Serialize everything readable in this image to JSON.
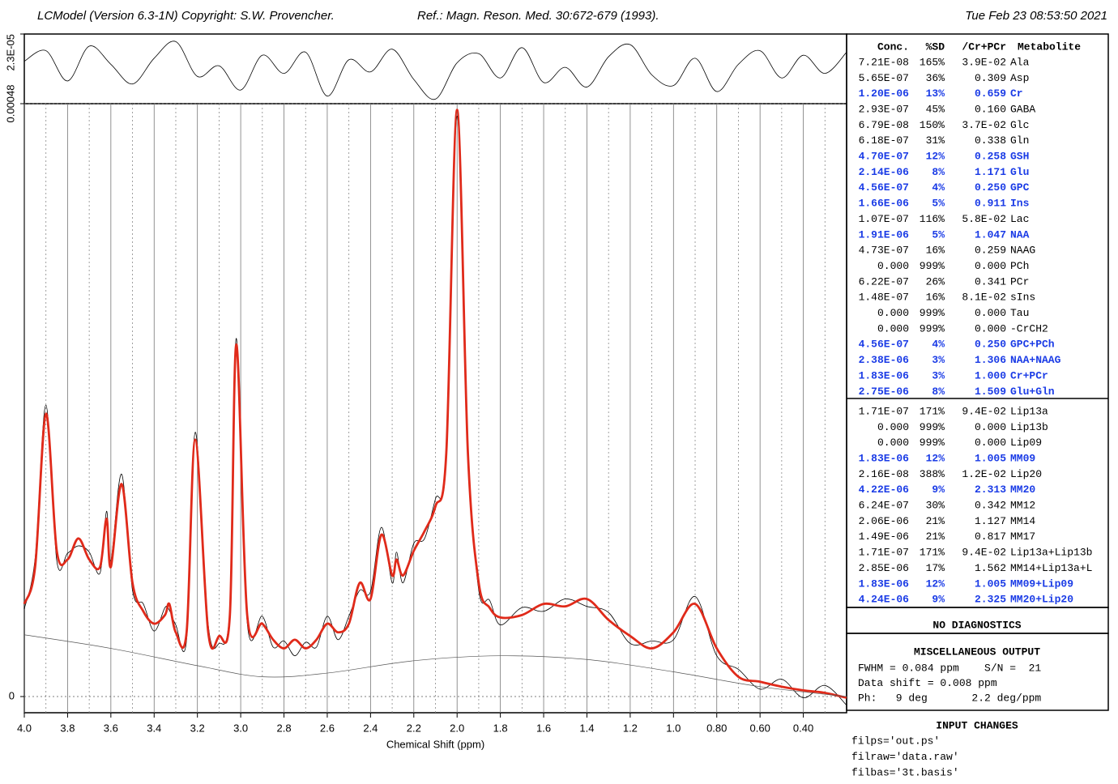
{
  "header": {
    "program": "LCModel (Version 6.3-1N) Copyright: S.W. Provencher.",
    "reference": "Ref.: Magn. Reson. Med. 30:672-679 (1993).",
    "date": "Tue Feb 23 08:53:50 2021"
  },
  "chart_data": [
    {
      "type": "line",
      "xlim": [
        4.0,
        0.2
      ],
      "ylim": [
        -2.3e-05,
        2.3e-05
      ],
      "yticks": [
        {
          "value": 2.3e-05,
          "label": "2.3E-05"
        }
      ],
      "series": [
        {
          "color": "#000000",
          "x": [
            4.0,
            3.9,
            3.8,
            3.7,
            3.6,
            3.5,
            3.4,
            3.3,
            3.2,
            3.1,
            3.0,
            2.9,
            2.8,
            2.7,
            2.6,
            2.5,
            2.4,
            2.3,
            2.2,
            2.1,
            2.0,
            1.9,
            1.8,
            1.7,
            1.6,
            1.5,
            1.4,
            1.3,
            1.2,
            1.1,
            1.0,
            0.9,
            0.8,
            0.7,
            0.6,
            0.5,
            0.4,
            0.3,
            0.2
          ],
          "values": [
            5e-06,
            1.2e-05,
            -8e-06,
            1.5e-05,
            3e-06,
            -1e-05,
            7e-06,
            1.8e-05,
            -5e-06,
            2e-06,
            -1.4e-05,
            9e-06,
            -3e-06,
            1.1e-05,
            -1.8e-05,
            6e-06,
            -2e-06,
            1.3e-05,
            -7e-06,
            -2e-05,
            4e-06,
            1e-05,
            -6e-06,
            1.4e-05,
            -9e-06,
            1e-06,
            -1.2e-05,
            8e-06,
            1.6e-05,
            -4e-06,
            -1.1e-05,
            7e-06,
            -1.5e-05,
            3e-06,
            1.2e-05,
            -6e-06,
            9e-06,
            -3e-06,
            1.1e-05
          ]
        }
      ]
    },
    {
      "type": "line",
      "x_label": "Chemical Shift (ppm)",
      "xlim": [
        4.0,
        0.2
      ],
      "xticks": [
        {
          "value": 4,
          "label": "4.0"
        },
        3.8,
        3.6,
        3.4,
        3.2,
        {
          "value": 3,
          "label": "3.0"
        },
        2.8,
        2.6,
        2.4,
        2.2,
        {
          "value": 2,
          "label": "2.0"
        },
        1.8,
        1.6,
        1.4,
        1.2,
        {
          "value": 1,
          "label": "1.0"
        },
        {
          "value": 0.8,
          "label": "0.80"
        },
        {
          "value": 0.6,
          "label": "0.60"
        },
        {
          "value": 0.4,
          "label": "0.40"
        }
      ],
      "xminor": [
        3.9,
        3.7,
        3.5,
        3.3,
        3.1,
        2.9,
        2.7,
        2.5,
        2.3,
        2.1,
        1.9,
        1.7,
        1.5,
        1.3,
        1.1,
        0.9,
        0.7,
        0.5,
        0.3
      ],
      "ylim": [
        -1.31e-05,
        0.00048
      ],
      "yticks": [
        0,
        0.00048
      ],
      "grid": true,
      "series": [
        {
          "color": "#000000",
          "x": [
            4.0,
            3.95,
            3.9,
            3.85,
            3.8,
            3.75,
            3.7,
            3.65,
            3.62,
            3.6,
            3.55,
            3.5,
            3.45,
            3.4,
            3.35,
            3.33,
            3.3,
            3.25,
            3.21,
            3.15,
            3.1,
            3.05,
            3.02,
            2.97,
            2.9,
            2.85,
            2.8,
            2.75,
            2.7,
            2.65,
            2.6,
            2.55,
            2.5,
            2.45,
            2.4,
            2.35,
            2.3,
            2.28,
            2.25,
            2.2,
            2.15,
            2.1,
            2.05,
            2.0,
            1.95,
            1.9,
            1.85,
            1.8,
            1.7,
            1.6,
            1.5,
            1.4,
            1.3,
            1.2,
            1.1,
            1.0,
            0.9,
            0.8,
            0.7,
            0.6,
            0.5,
            0.4,
            0.3,
            0.2
          ],
          "values": [
            7.1e-05,
            0.000112,
            0.000236,
            0.00011,
            0.000116,
            0.000122,
            0.000117,
            0.0001,
            0.00015,
            0.00011,
            0.00018,
            8.6e-05,
            7.5e-05,
            5.3e-05,
            7.2e-05,
            7e-05,
            5.8e-05,
            4.6e-05,
            0.000214,
            5.8e-05,
            4.3e-05,
            7.2e-05,
            0.00029,
            6e-05,
            6.5e-05,
            4e-05,
            4.5e-05,
            3.3e-05,
            4.4e-05,
            4e-05,
            6.5e-05,
            4.6e-05,
            6.5e-05,
            8.6e-05,
            8.5e-05,
            0.000137,
            9.2e-05,
            0.000117,
            9.2e-05,
            0.000124,
            0.000128,
            0.00016,
            0.000191,
            0.00047,
            0.000203,
            8.6e-05,
            7.8e-05,
            5.8e-05,
            7.2e-05,
            6.9e-05,
            7.9e-05,
            7.3e-05,
            6.8e-05,
            4.3e-05,
            4.5e-05,
            4.6e-05,
            8.1e-05,
            3.3e-05,
            2.2e-05,
            6e-06,
            1.4e-05,
            -1e-06,
            9e-06,
            -7e-06
          ]
        },
        {
          "color": "#e02a1a",
          "x": [
            4.0,
            3.95,
            3.9,
            3.85,
            3.8,
            3.75,
            3.7,
            3.65,
            3.62,
            3.6,
            3.55,
            3.5,
            3.45,
            3.4,
            3.35,
            3.33,
            3.3,
            3.25,
            3.21,
            3.15,
            3.1,
            3.05,
            3.02,
            2.97,
            2.9,
            2.85,
            2.8,
            2.75,
            2.7,
            2.65,
            2.6,
            2.55,
            2.5,
            2.45,
            2.4,
            2.35,
            2.3,
            2.28,
            2.25,
            2.2,
            2.15,
            2.1,
            2.05,
            2.0,
            1.95,
            1.9,
            1.85,
            1.8,
            1.7,
            1.6,
            1.5,
            1.4,
            1.3,
            1.2,
            1.1,
            1.0,
            0.9,
            0.8,
            0.7,
            0.6,
            0.5,
            0.4,
            0.3,
            0.2
          ],
          "values": [
            7.5e-05,
            0.000105,
            0.000229,
            0.000118,
            0.000111,
            0.000128,
            0.000111,
            0.000105,
            0.000144,
            0.000105,
            0.000172,
            9.2e-05,
            6.9e-05,
            5.9e-05,
            6.6e-05,
            7.5e-05,
            5.2e-05,
            5.2e-05,
            0.000208,
            5.2e-05,
            4.9e-05,
            6.6e-05,
            0.000285,
            6.6e-05,
            5.9e-05,
            4.6e-05,
            3.9e-05,
            4.6e-05,
            3.9e-05,
            4.6e-05,
            5.9e-05,
            5.2e-05,
            5.9e-05,
            9.2e-05,
            7.9e-05,
            0.000131,
            9.8e-05,
            0.000111,
            9.8e-05,
            0.000118,
            0.000134,
            0.000154,
            0.000197,
            0.000475,
            0.000197,
            9.2e-05,
            7.2e-05,
            6.4e-05,
            6.6e-05,
            7.5e-05,
            7.3e-05,
            7.9e-05,
            6.2e-05,
            4.9e-05,
            3.9e-05,
            5.2e-05,
            7.5e-05,
            3.9e-05,
            1.6e-05,
            1.2e-05,
            8e-06,
            5e-06,
            3e-06,
            -1e-06
          ]
        },
        {
          "color": "#555555",
          "x": [
            4.0,
            3.6,
            3.2,
            2.9,
            2.6,
            2.2,
            1.8,
            1.4,
            1.0,
            0.6,
            0.2
          ],
          "values": [
            5e-05,
            3.9e-05,
            2.5e-05,
            1.6e-05,
            1.9e-05,
            2.9e-05,
            3.3e-05,
            3e-05,
            2e-05,
            8e-06,
            0
          ]
        }
      ]
    }
  ],
  "results": {
    "columns": [
      "Conc.",
      "%SD",
      "/Cr+PCr",
      "Metabolite"
    ],
    "highlight_color": "#1a3be6",
    "sections": [
      [
        {
          "cells": [
            "7.21E-08",
            "165%",
            "3.9E-02",
            "Ala"
          ]
        },
        {
          "cells": [
            "5.65E-07",
            "36%",
            "0.309",
            "Asp"
          ]
        },
        {
          "cells": [
            "1.20E-06",
            "13%",
            "0.659",
            "Cr"
          ],
          "highlight": true
        },
        {
          "cells": [
            "2.93E-07",
            "45%",
            "0.160",
            "GABA"
          ]
        },
        {
          "cells": [
            "6.79E-08",
            "150%",
            "3.7E-02",
            "Glc"
          ]
        },
        {
          "cells": [
            "6.18E-07",
            "31%",
            "0.338",
            "Gln"
          ]
        },
        {
          "cells": [
            "4.70E-07",
            "12%",
            "0.258",
            "GSH"
          ],
          "highlight": true
        },
        {
          "cells": [
            "2.14E-06",
            "8%",
            "1.171",
            "Glu"
          ],
          "highlight": true
        },
        {
          "cells": [
            "4.56E-07",
            "4%",
            "0.250",
            "GPC"
          ],
          "highlight": true
        },
        {
          "cells": [
            "1.66E-06",
            "5%",
            "0.911",
            "Ins"
          ],
          "highlight": true
        },
        {
          "cells": [
            "1.07E-07",
            "116%",
            "5.8E-02",
            "Lac"
          ]
        },
        {
          "cells": [
            "1.91E-06",
            "5%",
            "1.047",
            "NAA"
          ],
          "highlight": true
        },
        {
          "cells": [
            "4.73E-07",
            "16%",
            "0.259",
            "NAAG"
          ]
        },
        {
          "cells": [
            "0.000",
            "999%",
            "0.000",
            "PCh"
          ]
        },
        {
          "cells": [
            "6.22E-07",
            "26%",
            "0.341",
            "PCr"
          ]
        },
        {
          "cells": [
            "1.48E-07",
            "16%",
            "8.1E-02",
            "sIns"
          ]
        },
        {
          "cells": [
            "0.000",
            "999%",
            "0.000",
            "Tau"
          ]
        },
        {
          "cells": [
            "0.000",
            "999%",
            "0.000",
            "-CrCH2"
          ]
        },
        {
          "cells": [
            "4.56E-07",
            "4%",
            "0.250",
            "GPC+PCh"
          ],
          "highlight": true
        },
        {
          "cells": [
            "2.38E-06",
            "3%",
            "1.306",
            "NAA+NAAG"
          ],
          "highlight": true
        },
        {
          "cells": [
            "1.83E-06",
            "3%",
            "1.000",
            "Cr+PCr"
          ],
          "highlight": true
        },
        {
          "cells": [
            "2.75E-06",
            "8%",
            "1.509",
            "Glu+Gln"
          ],
          "highlight": true
        }
      ],
      [
        {
          "cells": [
            "1.71E-07",
            "171%",
            "9.4E-02",
            "Lip13a"
          ]
        },
        {
          "cells": [
            "0.000",
            "999%",
            "0.000",
            "Lip13b"
          ]
        },
        {
          "cells": [
            "0.000",
            "999%",
            "0.000",
            "Lip09"
          ]
        },
        {
          "cells": [
            "1.83E-06",
            "12%",
            "1.005",
            "MM09"
          ],
          "highlight": true
        },
        {
          "cells": [
            "2.16E-08",
            "388%",
            "1.2E-02",
            "Lip20"
          ]
        },
        {
          "cells": [
            "4.22E-06",
            "9%",
            "2.313",
            "MM20"
          ],
          "highlight": true
        },
        {
          "cells": [
            "6.24E-07",
            "30%",
            "0.342",
            "MM12"
          ]
        },
        {
          "cells": [
            "2.06E-06",
            "21%",
            "1.127",
            "MM14"
          ]
        },
        {
          "cells": [
            "1.49E-06",
            "21%",
            "0.817",
            "MM17"
          ]
        },
        {
          "cells": [
            "1.71E-07",
            "171%",
            "9.4E-02",
            "Lip13a+Lip13b"
          ]
        },
        {
          "cells": [
            "2.85E-06",
            "17%",
            "1.562",
            "MM14+Lip13a+L"
          ]
        },
        {
          "cells": [
            "1.83E-06",
            "12%",
            "1.005",
            "MM09+Lip09"
          ],
          "highlight": true
        },
        {
          "cells": [
            "4.24E-06",
            "9%",
            "2.325",
            "MM20+Lip20"
          ],
          "highlight": true
        }
      ]
    ]
  },
  "diagnostics": "NO DIAGNOSTICS",
  "misc": {
    "title": "MISCELLANEOUS OUTPUT",
    "lines": [
      "FWHM = 0.084 ppm    S/N =  21",
      "Data shift = 0.008 ppm",
      "Ph:   9 deg       2.2 deg/ppm"
    ]
  },
  "input_changes": {
    "title": "INPUT CHANGES",
    "lines": [
      "filps='out.ps'",
      "filraw='data.raw'",
      "filbas='3t.basis'"
    ]
  }
}
